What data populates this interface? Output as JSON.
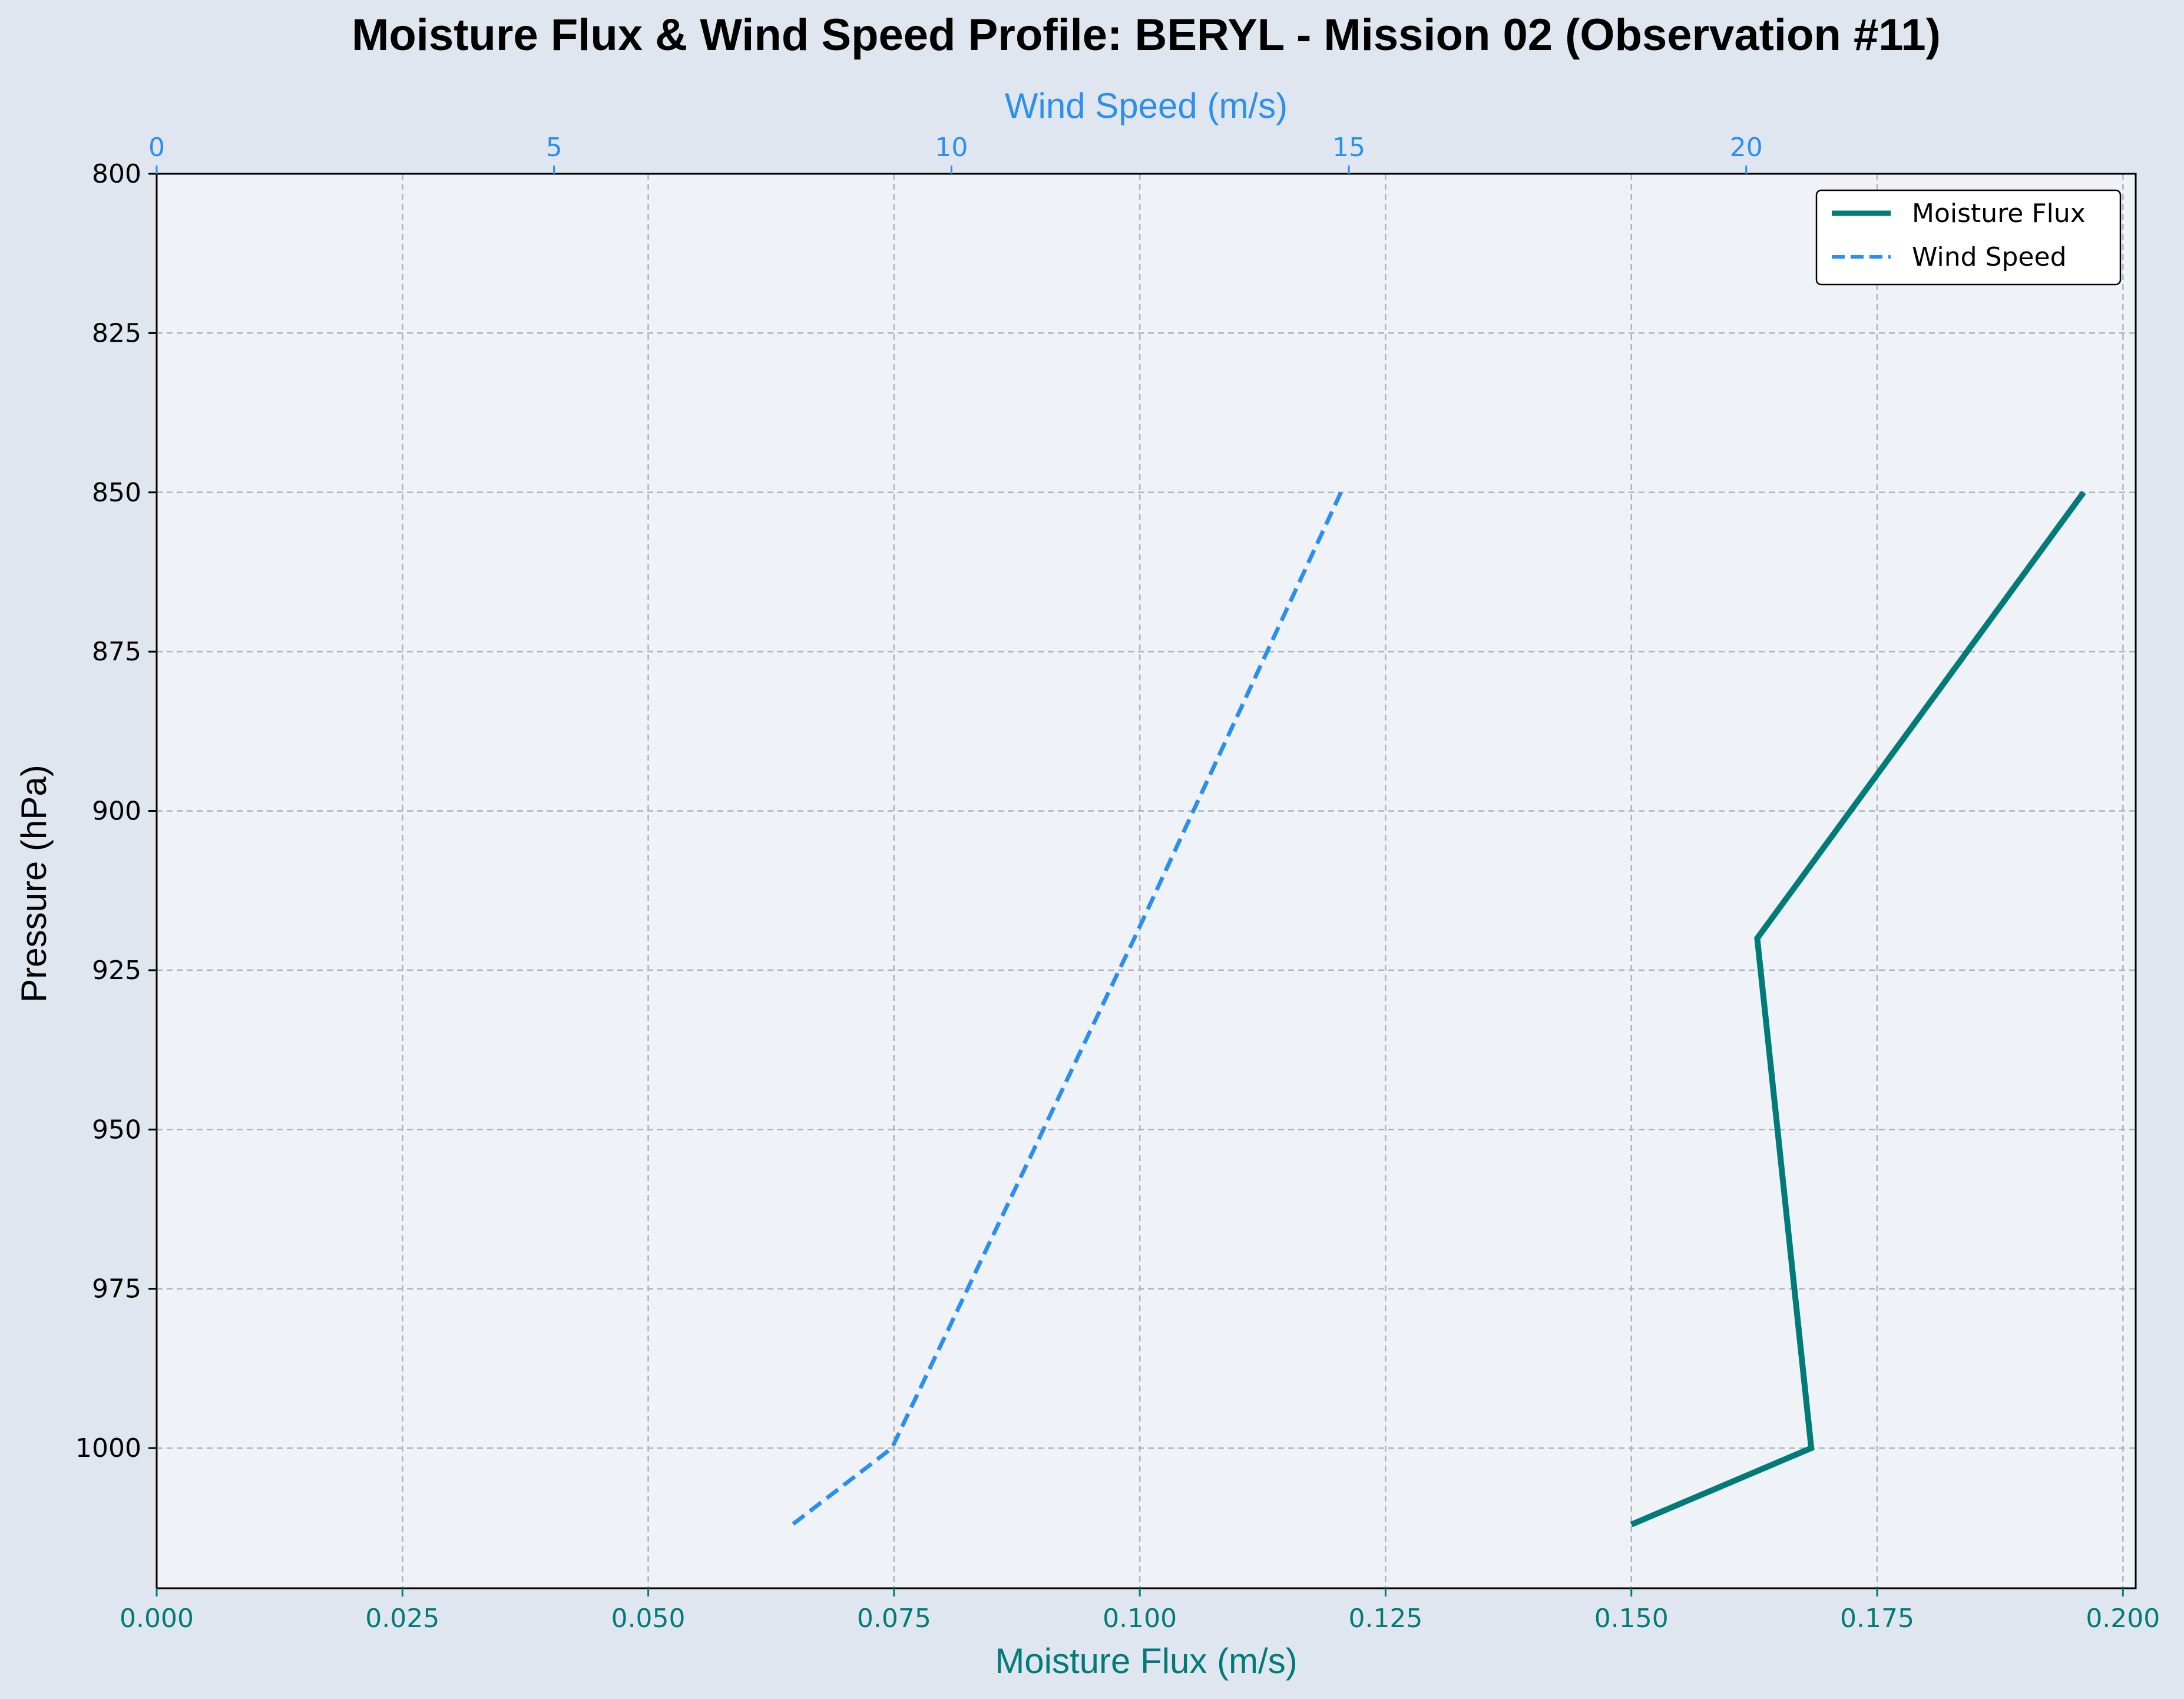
{
  "chart_data": {
    "type": "line",
    "title": "Moisture Flux & Wind Speed Profile: BERYL - Mission 02 (Observation #11)",
    "ylabel": "Pressure (hPa)",
    "xlabel_bottom": "Moisture Flux (m/s)",
    "xlabel_top": "Wind Speed (m/s)",
    "ylim": [
      800,
      1022
    ],
    "xlim_bottom": [
      0,
      0.2013
    ],
    "xlim_top": [
      0,
      24.9
    ],
    "y_ticks": [
      "800",
      "825",
      "850",
      "875",
      "900",
      "925",
      "950",
      "975",
      "1000"
    ],
    "y_tick_values": [
      800,
      825,
      850,
      875,
      900,
      925,
      950,
      975,
      1000
    ],
    "x_bottom_ticks": [
      "0.000",
      "0.025",
      "0.050",
      "0.075",
      "0.100",
      "0.125",
      "0.150",
      "0.175",
      "0.200"
    ],
    "x_bottom_tick_values": [
      0,
      0.025,
      0.05,
      0.075,
      0.1,
      0.125,
      0.15,
      0.175,
      0.2
    ],
    "x_top_ticks": [
      "0",
      "5",
      "10",
      "15",
      "20"
    ],
    "x_top_tick_values": [
      0,
      5,
      10,
      15,
      20
    ],
    "grid": true,
    "legend_position": "top-right",
    "series": [
      {
        "name": "Moisture Flux",
        "axis": "bottom",
        "color": "#007b77",
        "style": "solid",
        "points": [
          [
            0.196,
            850
          ],
          [
            0.1628,
            920
          ],
          [
            0.1683,
            1000
          ],
          [
            0.15,
            1012
          ]
        ]
      },
      {
        "name": "Wind Speed",
        "axis": "top",
        "color": "#2b8ff0",
        "style": "dashed",
        "points": [
          [
            14.9,
            850
          ],
          [
            12.3,
            920
          ],
          [
            9.25,
            1000
          ],
          [
            8.0,
            1012
          ]
        ]
      }
    ]
  }
}
